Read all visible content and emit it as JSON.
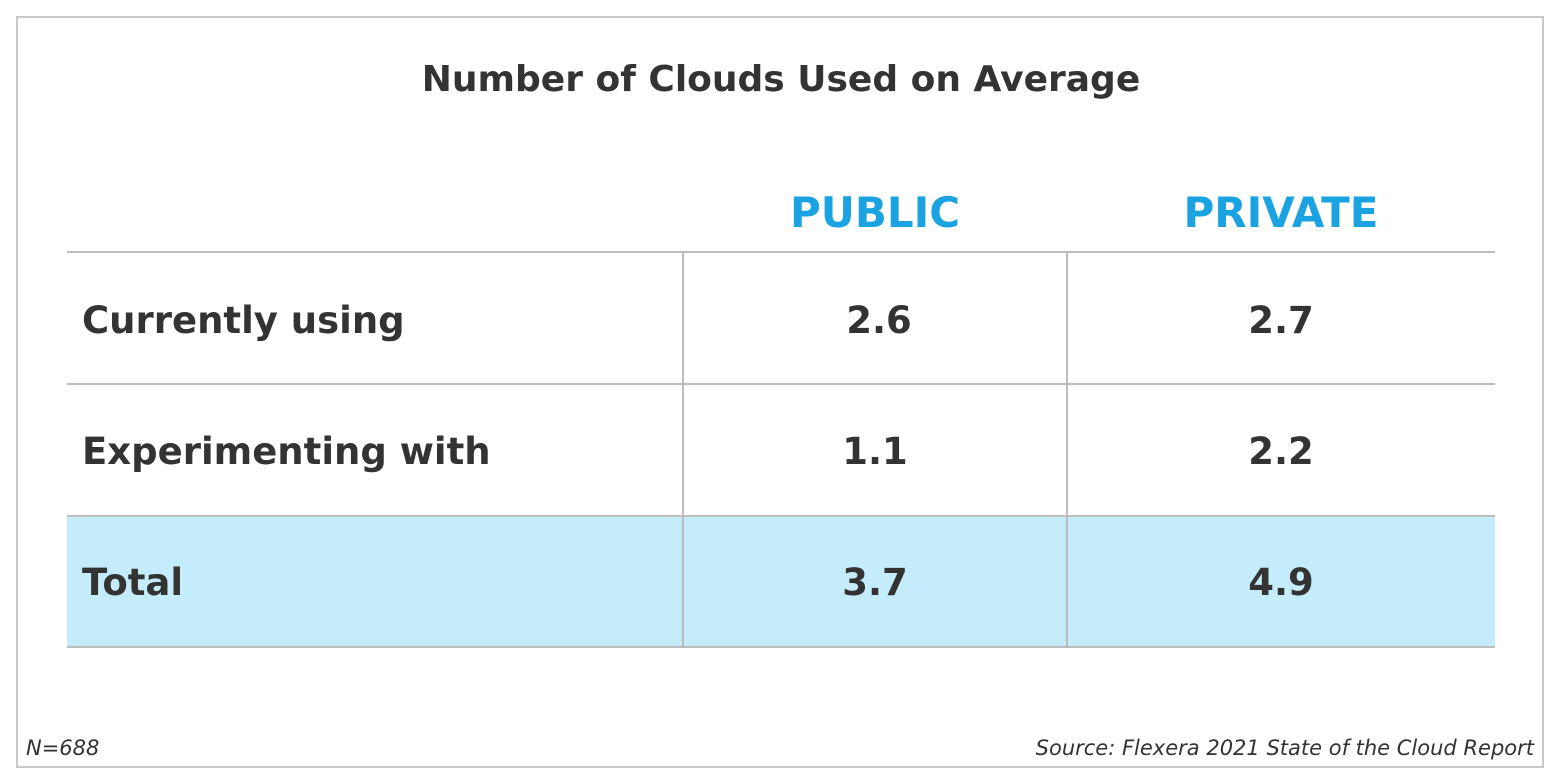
{
  "chart_data": {
    "type": "table",
    "title": "Number of Clouds Used on Average",
    "columns": [
      "PUBLIC",
      "PRIVATE"
    ],
    "rows": [
      {
        "label": "Currently using",
        "values": [
          "2.6",
          "2.7"
        ]
      },
      {
        "label": "Experimenting with",
        "values": [
          "1.1",
          "2.2"
        ]
      },
      {
        "label": "Total",
        "values": [
          "3.7",
          "4.9"
        ]
      }
    ],
    "highlight_row": "Total",
    "highlight_color": "#c4ecfa",
    "header_color": "#1aa3e0"
  },
  "footer": {
    "sample": "N=688",
    "source": "Source: Flexera 2021 State of the Cloud Report"
  }
}
